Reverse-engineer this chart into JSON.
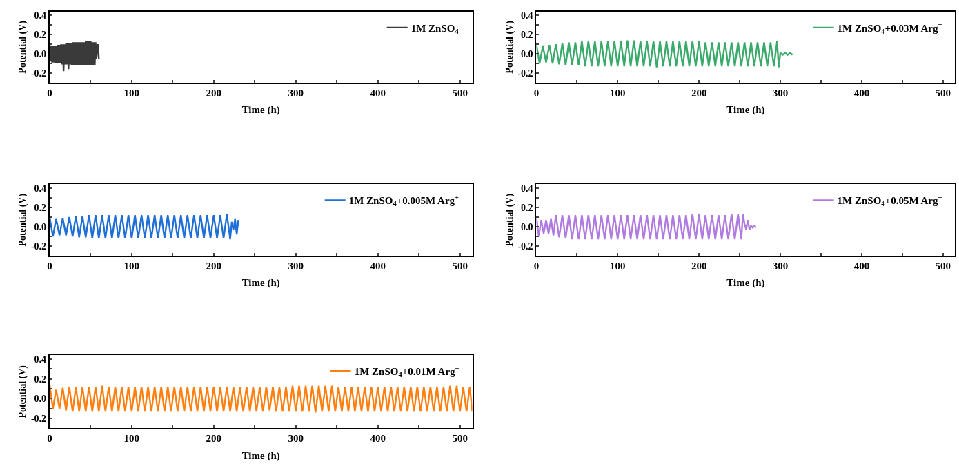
{
  "chart_data": [
    {
      "type": "line",
      "xlabel": "Time (h)",
      "ylabel": "Potential (V)",
      "xlim": [
        0,
        515
      ],
      "ylim": [
        -0.3,
        0.44
      ],
      "legend": "top right",
      "xticks": [
        0,
        {
          "value": 50,
          "label": null
        },
        100,
        {
          "value": 150,
          "label": null
        },
        200,
        {
          "value": 250,
          "label": null
        },
        300,
        {
          "value": 350,
          "label": null
        },
        400,
        {
          "value": 450,
          "label": null
        },
        500
      ],
      "yticks": [
        {
          "value": -0.2,
          "label": "-0.2"
        },
        {
          "value": -0.1,
          "label": null
        },
        {
          "value": 0,
          "label": "0.0"
        },
        {
          "value": 0.1,
          "label": null
        },
        {
          "value": 0.2,
          "label": "0.2"
        },
        {
          "value": 0.3,
          "label": null
        },
        {
          "value": 0.4,
          "label": "0.4"
        }
      ],
      "series": [
        {
          "name": "1M ZnSO$_{4}$",
          "color": "#3a3a3a",
          "x": [
            0,
            1,
            2,
            3,
            4,
            5,
            6,
            7,
            8,
            9,
            10,
            11,
            12,
            13,
            14,
            15,
            16,
            17,
            18,
            19,
            20,
            21,
            22,
            23,
            24,
            25,
            26,
            27,
            28,
            29,
            30,
            31,
            32,
            33,
            34,
            35,
            36,
            37,
            38,
            39,
            40,
            41,
            42,
            43,
            44,
            45,
            46,
            47,
            48,
            49,
            50,
            51,
            52,
            53,
            54,
            55,
            56,
            57,
            58,
            59,
            60
          ],
          "values": [
            0.1,
            -0.08,
            0.08,
            -0.09,
            0.08,
            -0.09,
            0.08,
            -0.1,
            0.08,
            -0.1,
            0.09,
            -0.1,
            0.09,
            -0.1,
            0.1,
            -0.11,
            0.1,
            -0.18,
            0.1,
            -0.11,
            0.11,
            -0.11,
            0.11,
            -0.16,
            0.11,
            -0.11,
            0.11,
            -0.12,
            0.12,
            -0.12,
            0.12,
            -0.12,
            0.12,
            -0.12,
            0.12,
            -0.12,
            0.12,
            -0.12,
            0.12,
            -0.12,
            0.12,
            -0.12,
            0.12,
            -0.12,
            0.13,
            -0.12,
            0.13,
            -0.12,
            0.13,
            -0.12,
            0.13,
            -0.12,
            0.12,
            -0.12,
            0.12,
            -0.12,
            0.12,
            -0.05,
            0.03,
            0.1,
            -0.05
          ]
        }
      ]
    },
    {
      "type": "line",
      "xlabel": "Time (h)",
      "ylabel": "Potential (V)",
      "xlim": [
        0,
        515
      ],
      "ylim": [
        -0.3,
        0.44
      ],
      "legend": "top right",
      "xticks": [
        0,
        {
          "value": 50,
          "label": null
        },
        100,
        {
          "value": 150,
          "label": null
        },
        200,
        {
          "value": 250,
          "label": null
        },
        300,
        {
          "value": 350,
          "label": null
        },
        400,
        {
          "value": 450,
          "label": null
        },
        500
      ],
      "yticks": [
        {
          "value": -0.2,
          "label": "-0.2"
        },
        {
          "value": -0.1,
          "label": null
        },
        {
          "value": 0,
          "label": "0.0"
        },
        {
          "value": 0.1,
          "label": null
        },
        {
          "value": 0.2,
          "label": "0.2"
        },
        {
          "value": 0.3,
          "label": null
        },
        {
          "value": 0.4,
          "label": "0.4"
        }
      ],
      "series": [
        {
          "name": "1M ZnSO$_{4}$+0.03M Arg$^{+}$",
          "color": "#3aaa6a",
          "x": [
            0,
            4,
            8,
            12,
            16,
            20,
            24,
            28,
            32,
            36,
            40,
            44,
            48,
            52,
            56,
            60,
            64,
            68,
            72,
            76,
            80,
            84,
            88,
            92,
            96,
            100,
            104,
            108,
            112,
            116,
            120,
            124,
            128,
            132,
            136,
            140,
            144,
            148,
            152,
            156,
            160,
            164,
            168,
            172,
            176,
            180,
            184,
            188,
            192,
            196,
            200,
            204,
            208,
            212,
            216,
            220,
            224,
            228,
            232,
            236,
            240,
            244,
            248,
            252,
            256,
            260,
            264,
            268,
            272,
            276,
            280,
            284,
            288,
            292,
            296,
            298,
            300,
            303,
            306,
            309,
            312,
            315
          ],
          "values": [
            0.1,
            -0.1,
            0.08,
            -0.09,
            0.09,
            -0.1,
            0.1,
            -0.11,
            0.11,
            -0.12,
            0.12,
            -0.12,
            0.12,
            -0.12,
            0.13,
            -0.13,
            0.13,
            -0.13,
            0.13,
            -0.13,
            0.13,
            -0.13,
            0.13,
            -0.13,
            0.13,
            -0.13,
            0.13,
            -0.13,
            0.14,
            -0.13,
            0.14,
            -0.13,
            0.13,
            -0.13,
            0.13,
            -0.13,
            0.13,
            -0.14,
            0.13,
            -0.13,
            0.13,
            -0.13,
            0.13,
            -0.13,
            0.13,
            -0.13,
            0.13,
            -0.13,
            0.13,
            -0.13,
            0.13,
            -0.13,
            0.12,
            -0.13,
            0.12,
            -0.13,
            0.12,
            -0.13,
            0.12,
            -0.13,
            0.12,
            -0.13,
            0.12,
            -0.13,
            0.12,
            -0.13,
            0.12,
            -0.13,
            0.12,
            -0.13,
            0.12,
            -0.13,
            0.12,
            -0.13,
            0.13,
            -0.14,
            0.01,
            -0.01,
            0.01,
            -0.01,
            0.01,
            -0.01
          ]
        }
      ]
    },
    {
      "type": "line",
      "xlabel": "Time (h)",
      "ylabel": "Potential (V)",
      "xlim": [
        0,
        515
      ],
      "ylim": [
        -0.3,
        0.44
      ],
      "legend": "top right",
      "xticks": [
        0,
        {
          "value": 50,
          "label": null
        },
        100,
        {
          "value": 150,
          "label": null
        },
        200,
        {
          "value": 250,
          "label": null
        },
        300,
        {
          "value": 350,
          "label": null
        },
        400,
        {
          "value": 450,
          "label": null
        },
        500
      ],
      "yticks": [
        {
          "value": -0.2,
          "label": "-0.2"
        },
        {
          "value": -0.1,
          "label": null
        },
        {
          "value": 0,
          "label": "0.0"
        },
        {
          "value": 0.1,
          "label": null
        },
        {
          "value": 0.2,
          "label": "0.2"
        },
        {
          "value": 0.3,
          "label": null
        },
        {
          "value": 0.4,
          "label": "0.4"
        }
      ],
      "series": [
        {
          "name": "1M ZnSO$_{4}$+0.005M Arg$^{+}$",
          "color": "#1f6fd6",
          "x": [
            0,
            4,
            8,
            12,
            16,
            20,
            24,
            28,
            32,
            36,
            40,
            44,
            48,
            52,
            56,
            60,
            64,
            68,
            72,
            76,
            80,
            84,
            88,
            92,
            96,
            100,
            104,
            108,
            112,
            116,
            120,
            124,
            128,
            132,
            136,
            140,
            144,
            148,
            152,
            156,
            160,
            164,
            168,
            172,
            176,
            180,
            184,
            188,
            192,
            196,
            200,
            204,
            208,
            212,
            216,
            220,
            222,
            224,
            226,
            228,
            230
          ],
          "values": [
            0.1,
            -0.1,
            0.08,
            -0.09,
            0.09,
            -0.09,
            0.1,
            -0.1,
            0.11,
            -0.11,
            0.11,
            -0.11,
            0.12,
            -0.12,
            0.12,
            -0.12,
            0.12,
            -0.12,
            0.12,
            -0.12,
            0.12,
            -0.12,
            0.12,
            -0.12,
            0.12,
            -0.12,
            0.12,
            -0.12,
            0.12,
            -0.12,
            0.12,
            -0.12,
            0.12,
            -0.12,
            0.12,
            -0.12,
            0.12,
            -0.12,
            0.12,
            -0.12,
            0.12,
            -0.12,
            0.12,
            -0.12,
            0.12,
            -0.12,
            0.12,
            -0.12,
            0.12,
            -0.12,
            0.12,
            -0.12,
            0.12,
            -0.12,
            0.13,
            -0.13,
            0.05,
            -0.03,
            0.08,
            -0.08,
            0.07
          ]
        }
      ]
    },
    {
      "type": "line",
      "xlabel": "Time (h)",
      "ylabel": "Potential (V)",
      "xlim": [
        0,
        515
      ],
      "ylim": [
        -0.3,
        0.44
      ],
      "legend": "top right",
      "xticks": [
        0,
        {
          "value": 50,
          "label": null
        },
        100,
        {
          "value": 150,
          "label": null
        },
        200,
        {
          "value": 250,
          "label": null
        },
        300,
        {
          "value": 350,
          "label": null
        },
        400,
        {
          "value": 450,
          "label": null
        },
        500
      ],
      "yticks": [
        {
          "value": -0.2,
          "label": "-0.2"
        },
        {
          "value": -0.1,
          "label": null
        },
        {
          "value": 0,
          "label": "0.0"
        },
        {
          "value": 0.1,
          "label": null
        },
        {
          "value": 0.2,
          "label": "0.2"
        },
        {
          "value": 0.3,
          "label": null
        },
        {
          "value": 0.4,
          "label": "0.4"
        }
      ],
      "series": [
        {
          "name": "1M ZnSO$_{4}$+0.05M Arg$^{+}$",
          "color": "#b07be0",
          "x": [
            0,
            3,
            6,
            9,
            12,
            15,
            18,
            21,
            24,
            28,
            32,
            36,
            40,
            44,
            48,
            52,
            56,
            60,
            64,
            68,
            72,
            76,
            80,
            84,
            88,
            92,
            96,
            100,
            104,
            108,
            112,
            116,
            120,
            124,
            128,
            132,
            136,
            140,
            144,
            148,
            152,
            156,
            160,
            164,
            168,
            172,
            176,
            180,
            184,
            188,
            192,
            196,
            200,
            204,
            208,
            212,
            216,
            220,
            224,
            228,
            232,
            236,
            240,
            244,
            248,
            252,
            254,
            256,
            258,
            260,
            262,
            264,
            266,
            268,
            270
          ],
          "values": [
            0.1,
            -0.1,
            0.07,
            -0.07,
            0.07,
            -0.07,
            0.08,
            -0.09,
            0.12,
            -0.11,
            0.12,
            -0.12,
            0.12,
            -0.13,
            0.12,
            -0.13,
            0.12,
            -0.13,
            0.12,
            -0.13,
            0.12,
            -0.13,
            0.12,
            -0.13,
            0.12,
            -0.13,
            0.12,
            -0.13,
            0.12,
            -0.13,
            0.12,
            -0.13,
            0.12,
            -0.13,
            0.12,
            -0.13,
            0.12,
            -0.13,
            0.12,
            -0.13,
            0.12,
            -0.13,
            0.12,
            -0.13,
            0.12,
            -0.13,
            0.12,
            -0.13,
            0.12,
            -0.13,
            0.13,
            -0.13,
            0.13,
            -0.13,
            0.12,
            -0.13,
            0.12,
            -0.13,
            0.12,
            -0.13,
            0.12,
            -0.13,
            0.13,
            -0.13,
            0.13,
            -0.13,
            0.13,
            0.03,
            -0.03,
            0.07,
            -0.03,
            0.01,
            -0.01,
            0.01,
            -0.01
          ]
        }
      ]
    },
    {
      "type": "line",
      "xlabel": "Time (h)",
      "ylabel": "Potential (V)",
      "xlim": [
        0,
        515
      ],
      "ylim": [
        -0.3,
        0.44
      ],
      "legend": "top right",
      "xticks": [
        0,
        {
          "value": 50,
          "label": null
        },
        100,
        {
          "value": 150,
          "label": null
        },
        200,
        {
          "value": 250,
          "label": null
        },
        300,
        {
          "value": 350,
          "label": null
        },
        400,
        {
          "value": 450,
          "label": null
        },
        500
      ],
      "yticks": [
        {
          "value": -0.2,
          "label": "-0.2"
        },
        {
          "value": -0.1,
          "label": null
        },
        {
          "value": 0,
          "label": "0.0"
        },
        {
          "value": 0.1,
          "label": null
        },
        {
          "value": 0.2,
          "label": "0.2"
        },
        {
          "value": 0.3,
          "label": null
        },
        {
          "value": 0.4,
          "label": "0.4"
        }
      ],
      "series": [
        {
          "name": "1M ZnSO$_{4}$+0.01M Arg$^{+}$",
          "color": "#ff8010",
          "x": [
            0,
            4,
            8,
            12,
            16,
            20,
            24,
            28,
            32,
            36,
            40,
            44,
            48,
            52,
            56,
            60,
            64,
            68,
            72,
            76,
            80,
            84,
            88,
            92,
            96,
            100,
            104,
            108,
            112,
            116,
            120,
            124,
            128,
            132,
            136,
            140,
            144,
            148,
            152,
            156,
            160,
            164,
            168,
            172,
            176,
            180,
            184,
            188,
            192,
            196,
            200,
            204,
            208,
            212,
            216,
            220,
            224,
            228,
            232,
            236,
            240,
            244,
            248,
            252,
            256,
            260,
            264,
            268,
            272,
            276,
            280,
            284,
            288,
            292,
            296,
            300,
            304,
            308,
            312,
            316,
            320,
            324,
            328,
            332,
            336,
            340,
            344,
            348,
            352,
            356,
            360,
            364,
            368,
            372,
            376,
            380,
            384,
            388,
            392,
            396,
            400,
            404,
            408,
            412,
            416,
            420,
            424,
            428,
            432,
            436,
            440,
            444,
            448,
            452,
            456,
            460,
            464,
            468,
            472,
            476,
            480,
            484,
            488,
            492,
            496,
            500,
            504,
            508,
            512,
            515
          ],
          "values": [
            0.14,
            -0.1,
            0.09,
            -0.1,
            0.11,
            -0.12,
            0.12,
            -0.13,
            0.12,
            -0.13,
            0.12,
            -0.13,
            0.12,
            -0.13,
            0.12,
            -0.13,
            0.13,
            -0.13,
            0.12,
            -0.13,
            0.12,
            -0.13,
            0.12,
            -0.13,
            0.12,
            -0.13,
            0.12,
            -0.13,
            0.12,
            -0.13,
            0.12,
            -0.13,
            0.12,
            -0.13,
            0.12,
            -0.13,
            0.12,
            -0.13,
            0.12,
            -0.13,
            0.12,
            -0.13,
            0.12,
            -0.13,
            0.12,
            -0.13,
            0.12,
            -0.13,
            0.12,
            -0.13,
            0.12,
            -0.13,
            0.12,
            -0.13,
            0.12,
            -0.13,
            0.12,
            -0.13,
            0.12,
            -0.13,
            0.12,
            -0.13,
            0.12,
            -0.13,
            0.12,
            -0.13,
            0.12,
            -0.12,
            0.12,
            -0.13,
            0.12,
            -0.13,
            0.12,
            -0.13,
            0.13,
            -0.13,
            0.13,
            -0.13,
            0.13,
            -0.13,
            0.13,
            -0.14,
            0.13,
            -0.13,
            0.13,
            -0.13,
            0.13,
            -0.13,
            0.12,
            -0.13,
            0.12,
            -0.13,
            0.12,
            -0.13,
            0.12,
            -0.13,
            0.12,
            -0.13,
            0.12,
            -0.13,
            0.12,
            -0.13,
            0.12,
            -0.13,
            0.12,
            -0.13,
            0.12,
            -0.13,
            0.12,
            -0.13,
            0.12,
            -0.13,
            0.12,
            -0.13,
            0.12,
            -0.13,
            0.12,
            -0.13,
            0.12,
            -0.13,
            0.12,
            -0.13,
            0.13,
            -0.13,
            0.13,
            -0.13,
            0.12,
            -0.13,
            0.12,
            -0.13
          ]
        }
      ]
    }
  ]
}
